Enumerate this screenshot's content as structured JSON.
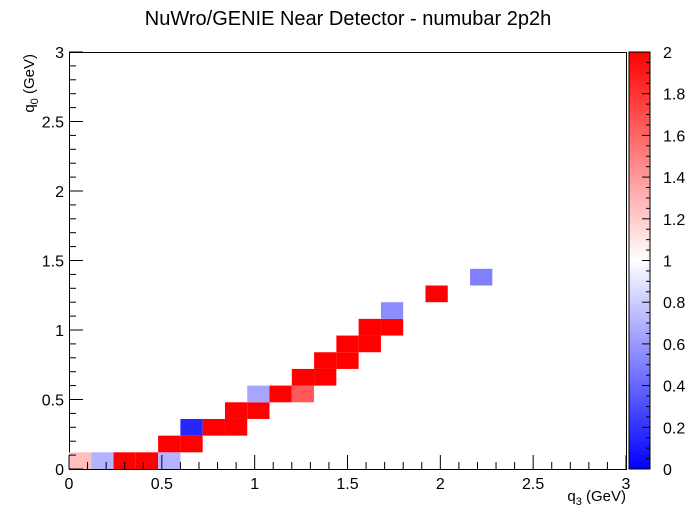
{
  "chart_data": {
    "type": "heatmap",
    "title": "NuWro/GENIE Near Detector - numubar 2p2h",
    "xlabel": {
      "main": "q",
      "sub": "3",
      "unit": " (GeV)"
    },
    "ylabel": {
      "main": "q",
      "sub": "0",
      "unit": " (GeV)"
    },
    "xlim": [
      0,
      3
    ],
    "ylim": [
      0,
      3
    ],
    "zlim": [
      0,
      2
    ],
    "bin_width_x": 0.12,
    "bin_width_y": 0.12,
    "x_ticks": [
      "0",
      "0.5",
      "1",
      "1.5",
      "2",
      "2.5",
      "3"
    ],
    "y_ticks": [
      "0",
      "0.5",
      "1",
      "1.5",
      "2",
      "2.5",
      "3"
    ],
    "z_ticks": [
      "0",
      "0.2",
      "0.4",
      "0.6",
      "0.8",
      "1",
      "1.2",
      "1.4",
      "1.6",
      "1.8",
      "2"
    ],
    "colorscale": {
      "low": "#0000ff",
      "mid": "#ffffff",
      "high": "#ff0000"
    },
    "cells": [
      {
        "x": 0.0,
        "y": 0.0,
        "z": 1.25
      },
      {
        "x": 0.12,
        "y": 0.0,
        "z": 0.7
      },
      {
        "x": 0.24,
        "y": 0.0,
        "z": 2.0
      },
      {
        "x": 0.36,
        "y": 0.0,
        "z": 2.0
      },
      {
        "x": 0.48,
        "y": 0.0,
        "z": 0.7
      },
      {
        "x": 0.48,
        "y": 0.12,
        "z": 2.0
      },
      {
        "x": 0.6,
        "y": 0.12,
        "z": 2.0
      },
      {
        "x": 0.6,
        "y": 0.24,
        "z": 0.15
      },
      {
        "x": 0.72,
        "y": 0.24,
        "z": 2.0
      },
      {
        "x": 0.84,
        "y": 0.24,
        "z": 2.0
      },
      {
        "x": 0.84,
        "y": 0.36,
        "z": 2.0
      },
      {
        "x": 0.96,
        "y": 0.36,
        "z": 2.0
      },
      {
        "x": 0.96,
        "y": 0.48,
        "z": 0.65
      },
      {
        "x": 1.08,
        "y": 0.48,
        "z": 2.0
      },
      {
        "x": 1.2,
        "y": 0.48,
        "z": 1.65
      },
      {
        "x": 1.2,
        "y": 0.6,
        "z": 2.0
      },
      {
        "x": 1.32,
        "y": 0.6,
        "z": 2.0
      },
      {
        "x": 1.32,
        "y": 0.72,
        "z": 2.0
      },
      {
        "x": 1.44,
        "y": 0.72,
        "z": 2.0
      },
      {
        "x": 1.44,
        "y": 0.84,
        "z": 2.0
      },
      {
        "x": 1.56,
        "y": 0.84,
        "z": 2.0
      },
      {
        "x": 1.56,
        "y": 0.96,
        "z": 2.0
      },
      {
        "x": 1.68,
        "y": 0.96,
        "z": 2.0
      },
      {
        "x": 1.68,
        "y": 1.08,
        "z": 0.55
      },
      {
        "x": 1.92,
        "y": 1.2,
        "z": 2.0
      },
      {
        "x": 2.16,
        "y": 1.32,
        "z": 0.5
      }
    ]
  }
}
